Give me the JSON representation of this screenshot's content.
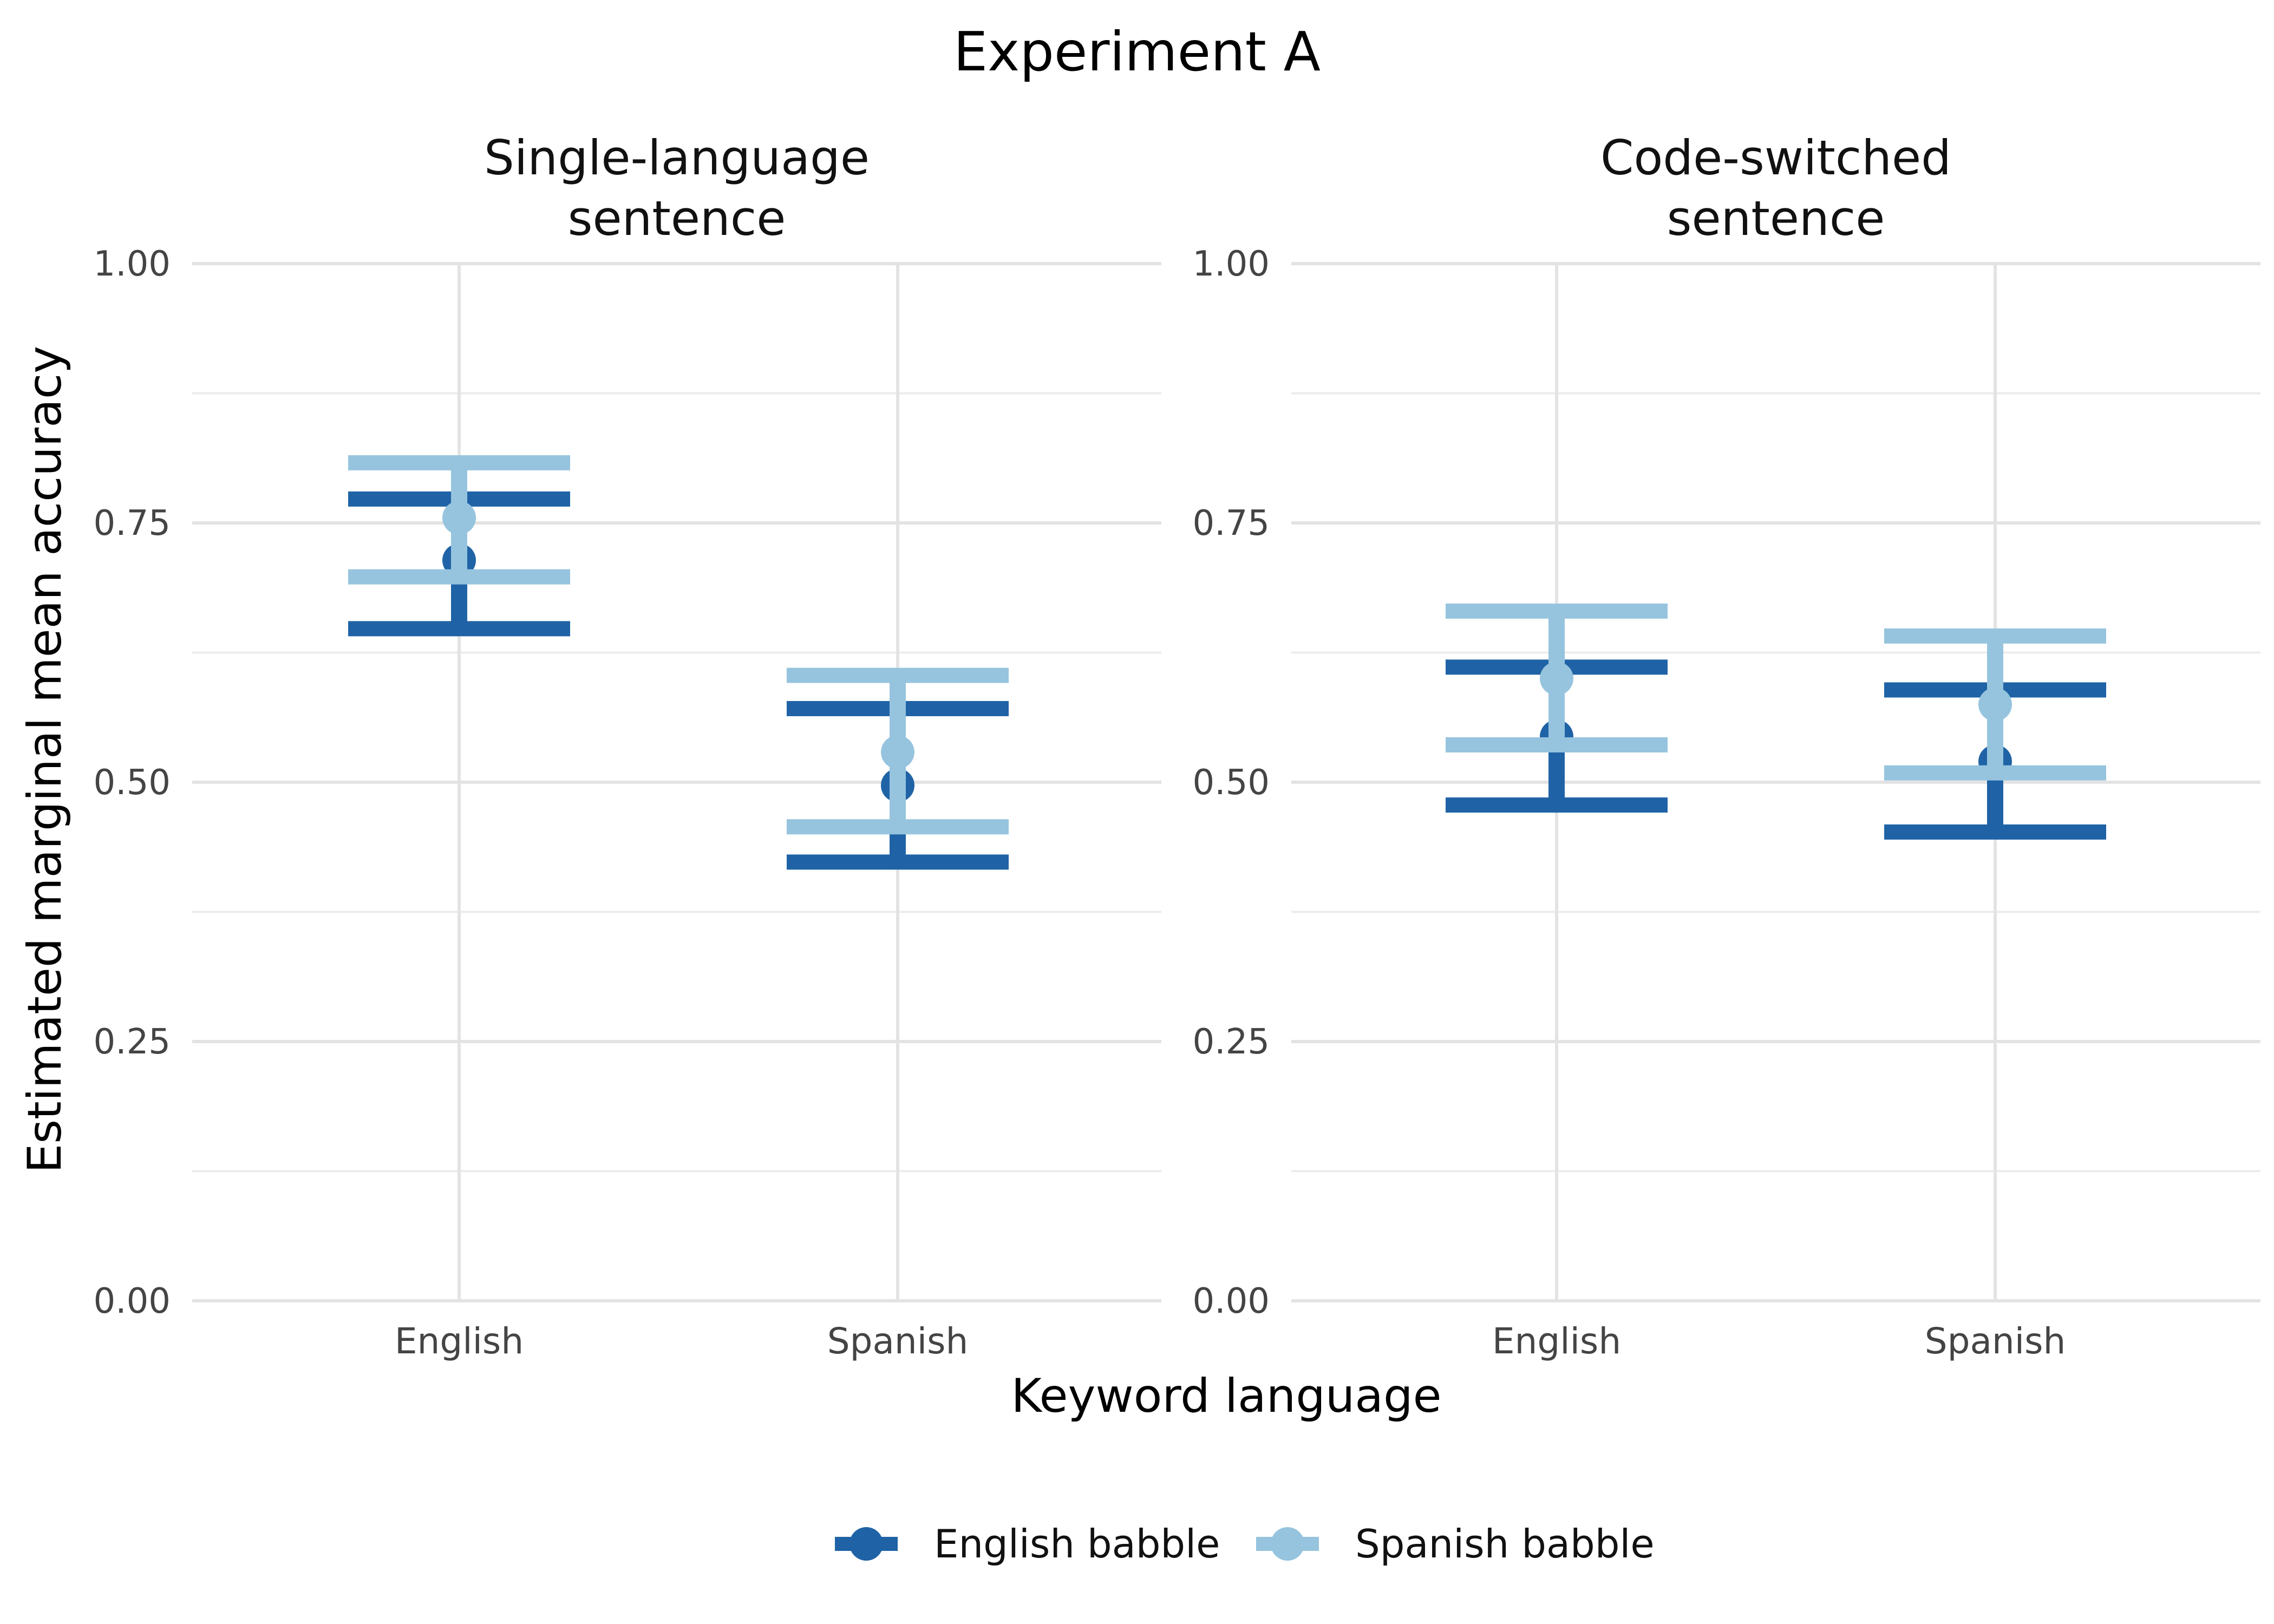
{
  "chart_data": {
    "type": "errorbar",
    "title": "Experiment A",
    "xlabel": "Keyword language",
    "ylabel": "Estimated marginal mean accuracy",
    "ylim": [
      0,
      1
    ],
    "yticks": [
      "0.00",
      "0.25",
      "0.50",
      "0.75",
      "1.00"
    ],
    "categories": [
      "English",
      "Spanish"
    ],
    "grid": true,
    "legend_position": "bottom",
    "panels": [
      {
        "title_lines": [
          "Single-language",
          "sentence"
        ],
        "series": [
          {
            "name": "English babble",
            "color": "#1f63a6",
            "points": [
              {
                "category": "English",
                "mean": 0.714,
                "lower": 0.648,
                "upper": 0.773
              },
              {
                "category": "Spanish",
                "mean": 0.497,
                "lower": 0.423,
                "upper": 0.571
              }
            ]
          },
          {
            "name": "Spanish babble",
            "color": "#96c4de",
            "points": [
              {
                "category": "English",
                "mean": 0.755,
                "lower": 0.698,
                "upper": 0.808
              },
              {
                "category": "Spanish",
                "mean": 0.529,
                "lower": 0.457,
                "upper": 0.603
              }
            ]
          }
        ]
      },
      {
        "title_lines": [
          "Code-switched",
          "sentence"
        ],
        "series": [
          {
            "name": "English babble",
            "color": "#1f63a6",
            "points": [
              {
                "category": "English",
                "mean": 0.544,
                "lower": 0.478,
                "upper": 0.611
              },
              {
                "category": "Spanish",
                "mean": 0.52,
                "lower": 0.452,
                "upper": 0.589
              }
            ]
          },
          {
            "name": "Spanish babble",
            "color": "#96c4de",
            "points": [
              {
                "category": "English",
                "mean": 0.6,
                "lower": 0.536,
                "upper": 0.665
              },
              {
                "category": "Spanish",
                "mean": 0.575,
                "lower": 0.509,
                "upper": 0.641
              }
            ]
          }
        ]
      }
    ],
    "legend": [
      {
        "label": "English babble",
        "color": "#1f63a6"
      },
      {
        "label": "Spanish babble",
        "color": "#96c4de"
      }
    ]
  }
}
